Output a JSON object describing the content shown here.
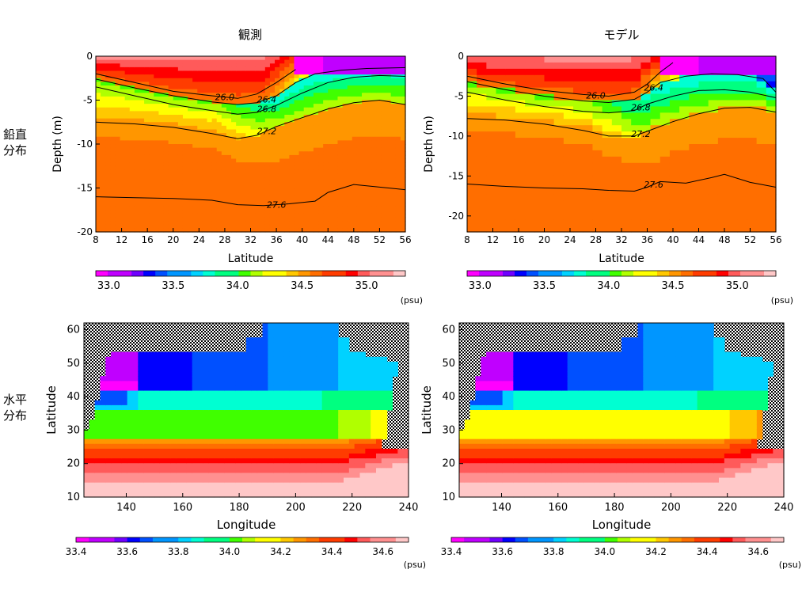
{
  "titles": {
    "obs": "観測",
    "model": "モデル"
  },
  "row_labels": {
    "vertical": [
      "鉛直",
      "分布"
    ],
    "horizontal": [
      "水平",
      "分布"
    ]
  },
  "colors": {
    "salinity_scale": [
      "#ff00ff",
      "#c000ff",
      "#7000ff",
      "#0000ff",
      "#0050ff",
      "#0096ff",
      "#00d2ff",
      "#00ffd2",
      "#00ff80",
      "#40ff00",
      "#b0ff00",
      "#ffff00",
      "#ffc800",
      "#ff9600",
      "#ff6e00",
      "#ff3c00",
      "#ff0000",
      "#ff5a5a",
      "#ff9090",
      "#ffc8c8"
    ],
    "land": "#000000"
  },
  "chart_data": [
    {
      "id": "vertical-obs",
      "type": "heatmap",
      "title": "観測",
      "xlabel": "Latitude",
      "ylabel": "Depth (m)",
      "xlim": [
        8,
        56
      ],
      "ylim": [
        -20,
        0
      ],
      "xticks": [
        "8",
        "12",
        "16",
        "20",
        "24",
        "28",
        "32",
        "36",
        "40",
        "44",
        "48",
        "52",
        "56"
      ],
      "yticks": [
        "0",
        "-5",
        "-10",
        "-15",
        "-20"
      ],
      "contours": [
        {
          "label": "26.0",
          "x": [
            8,
            14,
            20,
            26,
            30,
            33,
            36,
            39
          ],
          "y": [
            -2.0,
            -3.0,
            -4.0,
            -4.5,
            -4.8,
            -4.3,
            -3.0,
            -1.5
          ]
        },
        {
          "label": "26.4",
          "x": [
            8,
            14,
            20,
            26,
            30,
            33,
            36,
            39,
            42,
            46,
            50,
            56
          ],
          "y": [
            -2.6,
            -3.6,
            -4.5,
            -5.2,
            -5.5,
            -5.3,
            -4.5,
            -3.0,
            -2.0,
            -1.6,
            -1.4,
            -1.3
          ]
        },
        {
          "label": "26.8",
          "x": [
            8,
            14,
            20,
            26,
            30,
            33,
            36,
            40,
            44,
            48,
            52,
            56
          ],
          "y": [
            -3.5,
            -4.5,
            -5.5,
            -6.2,
            -6.6,
            -6.4,
            -5.6,
            -4.2,
            -3.0,
            -2.4,
            -2.2,
            -2.3
          ]
        },
        {
          "label": "27.2",
          "x": [
            8,
            14,
            20,
            26,
            30,
            33,
            36,
            40,
            44,
            48,
            52,
            56
          ],
          "y": [
            -7.5,
            -7.7,
            -8.1,
            -8.8,
            -9.4,
            -9.0,
            -8.0,
            -7.0,
            -6.0,
            -5.3,
            -5.0,
            -5.5
          ]
        },
        {
          "label": "27.6",
          "x": [
            8,
            14,
            20,
            26,
            30,
            34,
            38,
            42,
            44,
            48,
            52,
            56
          ],
          "y": [
            -16.0,
            -16.1,
            -16.2,
            -16.4,
            -16.9,
            -17.0,
            -16.8,
            -16.5,
            -15.5,
            -14.6,
            -14.9,
            -15.2
          ]
        }
      ],
      "colorbar": {
        "ticks": [
          "33.0",
          "33.5",
          "34.0",
          "34.5",
          "35.0"
        ],
        "range": [
          32.9,
          35.3
        ],
        "unit": "(psu)"
      }
    },
    {
      "id": "vertical-model",
      "type": "heatmap",
      "title": "モデル",
      "xlabel": "Latitude",
      "ylabel": "Depth (m)",
      "xlim": [
        8,
        56
      ],
      "ylim": [
        -22,
        0
      ],
      "xticks": [
        "8",
        "12",
        "16",
        "20",
        "24",
        "28",
        "32",
        "36",
        "40",
        "44",
        "48",
        "52",
        "56"
      ],
      "yticks": [
        "0",
        "-5",
        "-10",
        "-15",
        "-20"
      ],
      "contours": [
        {
          "label": "26.0",
          "x": [
            8,
            14,
            20,
            26,
            30,
            34,
            36,
            38,
            40
          ],
          "y": [
            -2.5,
            -3.5,
            -4.3,
            -4.8,
            -5.0,
            -4.5,
            -3.5,
            -2.0,
            -0.8
          ]
        },
        {
          "label": "26.4",
          "x": [
            8,
            14,
            20,
            26,
            30,
            34,
            36,
            38,
            42,
            46,
            50,
            54,
            56
          ],
          "y": [
            -3.2,
            -4.2,
            -5.0,
            -5.6,
            -5.8,
            -5.4,
            -4.5,
            -3.3,
            -2.5,
            -2.2,
            -2.3,
            -2.8,
            -4.5
          ]
        },
        {
          "label": "26.8",
          "x": [
            8,
            14,
            20,
            26,
            30,
            34,
            36,
            40,
            44,
            48,
            52,
            56
          ],
          "y": [
            -4.5,
            -5.5,
            -6.3,
            -6.9,
            -7.1,
            -6.8,
            -6.0,
            -5.0,
            -4.3,
            -4.2,
            -4.5,
            -5.2
          ]
        },
        {
          "label": "27.2",
          "x": [
            8,
            14,
            20,
            26,
            30,
            34,
            36,
            40,
            44,
            48,
            52,
            56
          ],
          "y": [
            -7.8,
            -8.0,
            -8.5,
            -9.3,
            -10.0,
            -10.0,
            -9.4,
            -8.2,
            -7.2,
            -6.5,
            -6.4,
            -7.0
          ]
        },
        {
          "label": "27.6",
          "x": [
            8,
            14,
            20,
            26,
            30,
            34,
            36,
            38,
            42,
            46,
            48,
            52,
            56
          ],
          "y": [
            -16.0,
            -16.3,
            -16.5,
            -16.6,
            -16.8,
            -16.9,
            -16.4,
            -15.7,
            -15.9,
            -15.2,
            -14.8,
            -15.8,
            -16.4
          ]
        }
      ],
      "colorbar": {
        "ticks": [
          "33.0",
          "33.5",
          "34.0",
          "34.5",
          "35.0"
        ],
        "range": [
          32.9,
          35.3
        ],
        "unit": "(psu)"
      }
    },
    {
      "id": "horizontal-obs",
      "type": "heatmap",
      "xlabel": "Longitude",
      "ylabel": "Latitude",
      "xlim": [
        125,
        240
      ],
      "ylim": [
        10,
        62
      ],
      "xticks": [
        "140",
        "160",
        "180",
        "200",
        "220",
        "240"
      ],
      "yticks": [
        "10",
        "20",
        "30",
        "40",
        "50",
        "60"
      ],
      "colorbar": {
        "ticks": [
          "33.4",
          "33.6",
          "33.8",
          "34.0",
          "34.2",
          "34.4",
          "34.6"
        ],
        "range": [
          33.4,
          34.7
        ],
        "unit": "(psu)"
      }
    },
    {
      "id": "horizontal-model",
      "type": "heatmap",
      "xlabel": "Longitude",
      "ylabel": "Latitude",
      "xlim": [
        125,
        240
      ],
      "ylim": [
        10,
        62
      ],
      "xticks": [
        "140",
        "160",
        "180",
        "200",
        "220",
        "240"
      ],
      "yticks": [
        "10",
        "20",
        "30",
        "40",
        "50",
        "60"
      ],
      "colorbar": {
        "ticks": [
          "33.4",
          "33.6",
          "33.8",
          "34.0",
          "34.2",
          "34.4",
          "34.6"
        ],
        "range": [
          33.4,
          34.7
        ],
        "unit": "(psu)"
      }
    }
  ]
}
